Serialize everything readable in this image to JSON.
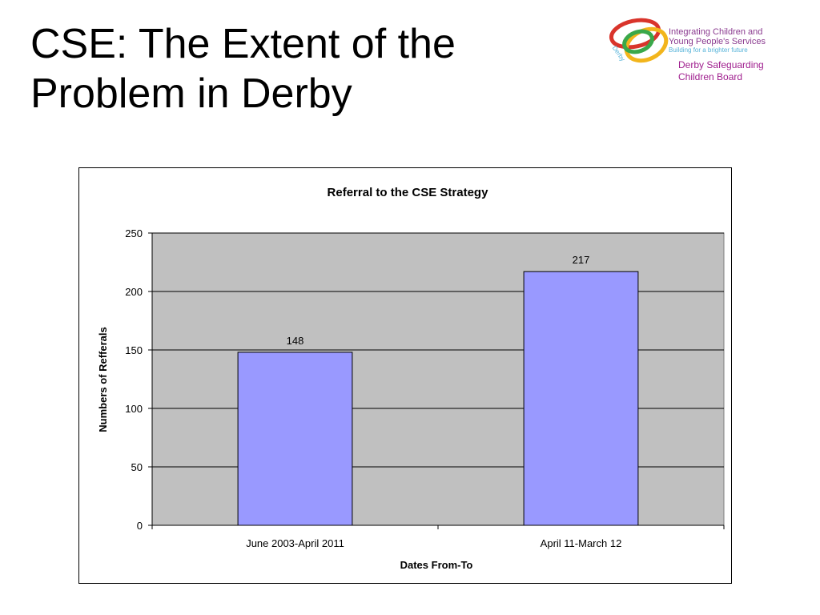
{
  "slide": {
    "title_line1": "CSE: The Extent of the",
    "title_line2": "Problem in Derby"
  },
  "logo": {
    "line1": "Integrating Children and",
    "line2": "Young People's Services",
    "tagline": "Building for a brighter future",
    "ring_label": "Derby",
    "board_line1": "Derby Safeguarding",
    "board_line2": "Children Board",
    "colors": {
      "red": "#d9342b",
      "green": "#3aa84a",
      "yellow": "#f2b51c",
      "purple": "#8a3a8f",
      "magenta": "#a0208f"
    }
  },
  "chart_data": {
    "type": "bar",
    "title": "Referral to the CSE Strategy",
    "xlabel": "Dates From-To",
    "ylabel": "Numbers of Refferals",
    "categories": [
      "June 2003-April 2011",
      "April 11-March 12"
    ],
    "values": [
      148,
      217
    ],
    "data_labels": [
      "148",
      "217"
    ],
    "ylim": [
      0,
      250
    ],
    "yticks": [
      0,
      50,
      100,
      150,
      200,
      250
    ],
    "grid": true,
    "legend": "none",
    "colors": {
      "bar": "#9999ff",
      "plot_bg": "#c0c0c0",
      "gridline": "#000000"
    }
  }
}
